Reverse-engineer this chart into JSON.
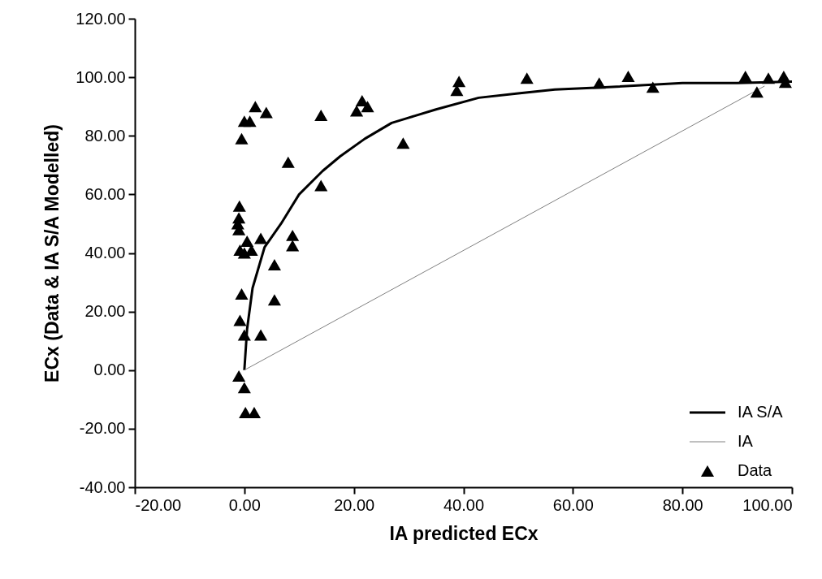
{
  "chart_data": {
    "type": "scatter",
    "xlabel": "IA predicted ECx",
    "ylabel": "ECx (Data & IA S/A Modelled)",
    "xlim": [
      -20,
      100
    ],
    "ylim": [
      -40,
      120
    ],
    "xticks": [
      {
        "value": -20,
        "label": "-20.00"
      },
      {
        "value": 0,
        "label": "0.00"
      },
      {
        "value": 20,
        "label": "20.00"
      },
      {
        "value": 40,
        "label": "40.00"
      },
      {
        "value": 60,
        "label": "60.00"
      },
      {
        "value": 80,
        "label": "80.00"
      },
      {
        "value": 100,
        "label": "100.00"
      }
    ],
    "yticks": [
      {
        "value": -40,
        "label": "-40.00"
      },
      {
        "value": -20,
        "label": "-20.00"
      },
      {
        "value": 0,
        "label": "0.00"
      },
      {
        "value": 20,
        "label": "20.00"
      },
      {
        "value": 40,
        "label": "40.00"
      },
      {
        "value": 60,
        "label": "60.00"
      },
      {
        "value": 80,
        "label": "80.00"
      },
      {
        "value": 100,
        "label": "100.00"
      },
      {
        "value": 120,
        "label": "120.00"
      }
    ],
    "grid": false,
    "legend": "bottom right",
    "marker": "triangle",
    "line_style": "solid",
    "series": [
      {
        "name": "IA S/A",
        "type": "line",
        "marker": "none",
        "color": "#000000",
        "x": [
          0,
          0.5,
          1.5,
          3.7,
          6.7,
          10,
          14.3,
          17.5,
          22,
          26.9,
          29.7,
          35,
          42.8,
          50,
          56.7,
          65,
          80,
          90,
          100
        ],
        "values": [
          0,
          14,
          28,
          42,
          50,
          60,
          68,
          73,
          79,
          84.4,
          86,
          89,
          93,
          94.5,
          95.8,
          96.5,
          98,
          98,
          98.5
        ]
      },
      {
        "name": "IA",
        "type": "line",
        "marker": "none",
        "color": "#808080",
        "x": [
          0,
          95
        ],
        "values": [
          0,
          97
        ]
      },
      {
        "name": "Data",
        "color": "#000000",
        "x": [
          -0.9,
          -1,
          -1.2,
          -1,
          0.5,
          -0.8,
          0,
          1.3,
          3,
          -0.5,
          -0.8,
          0,
          3,
          -1,
          0,
          0.2,
          1.8,
          -0.5,
          0,
          1,
          2,
          4,
          5.5,
          5.5,
          8,
          8.8,
          8.8,
          14,
          14,
          20.5,
          21.5,
          22.5,
          29,
          38.8,
          39.2,
          51.6,
          64.8,
          70.1,
          74.6,
          91.5,
          93.6,
          95.7,
          98.5,
          98.8
        ],
        "values": [
          56,
          52,
          50,
          48,
          44,
          41,
          40,
          41,
          45,
          26,
          17,
          12,
          12,
          -2,
          -6,
          -14.5,
          -14.5,
          79,
          85,
          85,
          90,
          88,
          24,
          36,
          71,
          46,
          42.5,
          63,
          87,
          88.5,
          92,
          90,
          77.5,
          95.5,
          98.6,
          99.7,
          98,
          100.3,
          96.6,
          100.3,
          95,
          99.7,
          100.3,
          98.3
        ]
      }
    ]
  }
}
